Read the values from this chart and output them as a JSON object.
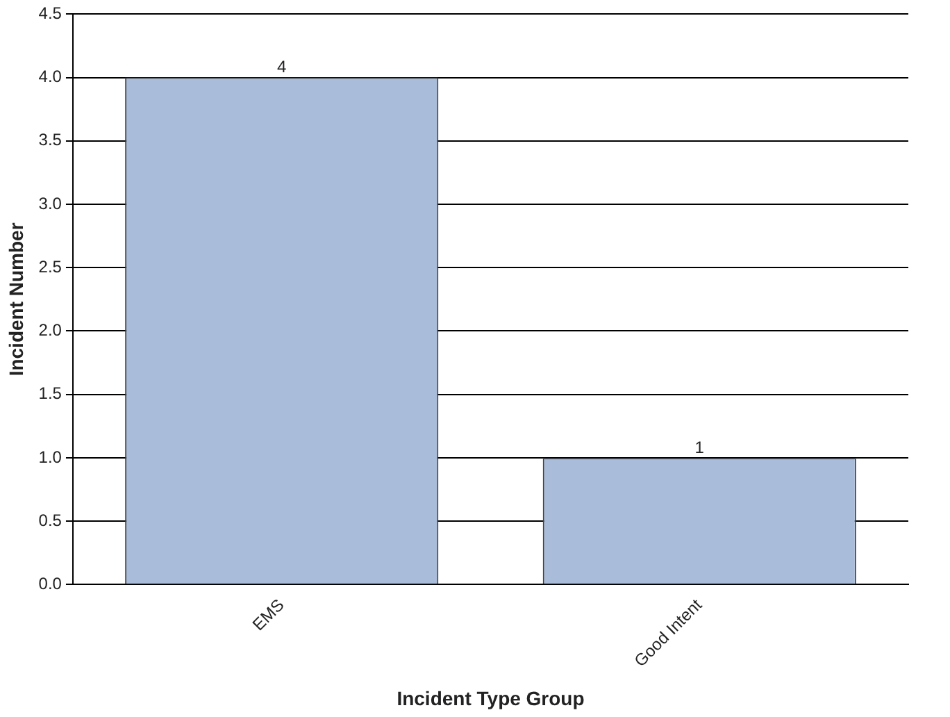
{
  "chart_data": {
    "type": "bar",
    "xlabel": "Incident Type Group",
    "ylabel": "Incident Number",
    "categories": [
      "EMS",
      "Good Intent"
    ],
    "values": [
      4,
      1
    ],
    "color": "#a9bcd9",
    "ylim": [
      0,
      4.5
    ],
    "yticks": [
      {
        "value": 0,
        "label": "0.0"
      },
      {
        "value": 0.5,
        "label": "0.5"
      },
      {
        "value": 1,
        "label": "1.0"
      },
      {
        "value": 1.5,
        "label": "1.5"
      },
      {
        "value": 2,
        "label": "2.0"
      },
      {
        "value": 2.5,
        "label": "2.5"
      },
      {
        "value": 3,
        "label": "3.0"
      },
      {
        "value": 3.5,
        "label": "3.5"
      },
      {
        "value": 4,
        "label": "4.0"
      },
      {
        "value": 4.5,
        "label": "4.5"
      }
    ],
    "grid": "y",
    "legend": false,
    "data_labels": true
  }
}
